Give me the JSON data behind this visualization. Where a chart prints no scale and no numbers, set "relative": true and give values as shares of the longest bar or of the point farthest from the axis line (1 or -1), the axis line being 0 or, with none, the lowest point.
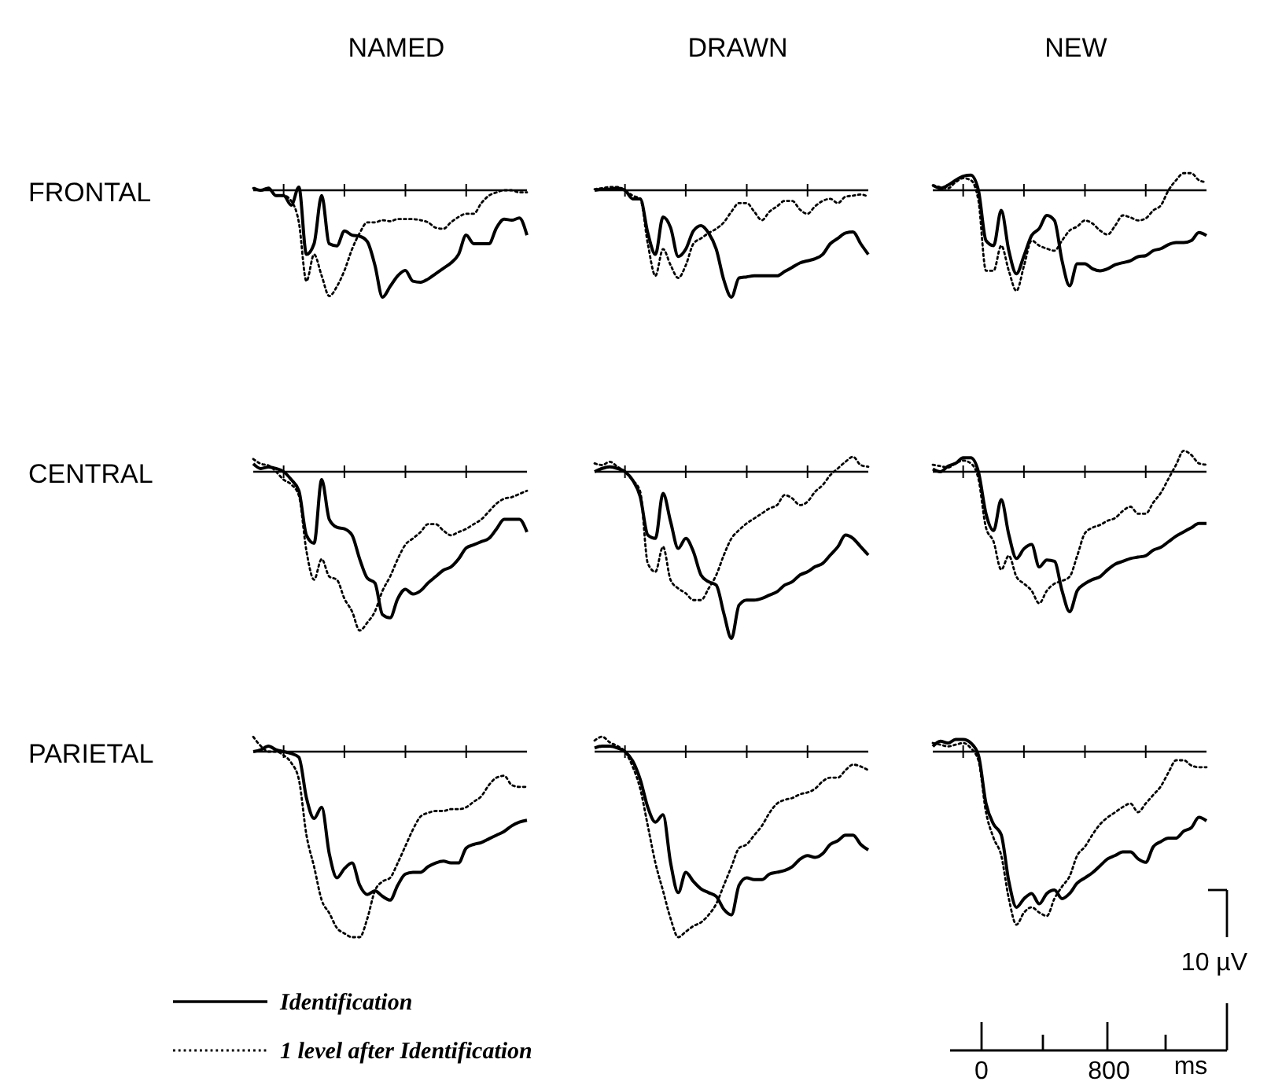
{
  "chart_data": [
    {
      "type": "line",
      "title": "NAMED",
      "ylabel": "FRONTAL",
      "relative": true,
      "categories": [
        null,
        null,
        null,
        null,
        null,
        null,
        null,
        null,
        null,
        null,
        null,
        null,
        null,
        null,
        null,
        null,
        null,
        null,
        null,
        null,
        null,
        null,
        null,
        null,
        null,
        null,
        null,
        null,
        null,
        null,
        null,
        null,
        null,
        null,
        null,
        null,
        null
      ],
      "series": [
        {
          "color": "#000000",
          "line_style": "solid",
          "values": [
            0.02,
            0,
            0.02,
            -0.05,
            -0.05,
            -0.14,
            0.03,
            -0.6,
            -0.5,
            -0.05,
            -0.5,
            -0.52,
            -0.38,
            -0.42,
            -0.43,
            -0.48,
            -0.7,
            -1,
            -0.9,
            -0.8,
            -0.75,
            -0.85,
            -0.86,
            -0.83,
            -0.78,
            -0.73,
            -0.68,
            -0.6,
            -0.42,
            -0.5,
            -0.5,
            -0.5,
            -0.35,
            -0.27,
            -0.28,
            -0.26,
            -0.42
          ]
        },
        {
          "color": "#000000",
          "line_style": "dotted",
          "values": [
            0.02,
            0,
            0.02,
            -0.05,
            -0.05,
            -0.1,
            -0.3,
            -0.85,
            -0.6,
            -0.8,
            -0.99,
            -0.9,
            -0.75,
            -0.55,
            -0.4,
            -0.3,
            -0.3,
            -0.28,
            -0.29,
            -0.27,
            -0.27,
            -0.27,
            -0.28,
            -0.3,
            -0.35,
            -0.36,
            -0.3,
            -0.25,
            -0.22,
            -0.22,
            -0.12,
            -0.05,
            -0.02,
            0,
            0,
            -0.02,
            -0.02
          ]
        }
      ]
    },
    {
      "type": "line",
      "title": "DRAWN",
      "relative": true,
      "categories": [
        null,
        null,
        null,
        null,
        null,
        null,
        null,
        null,
        null,
        null,
        null,
        null,
        null,
        null,
        null,
        null,
        null,
        null,
        null,
        null,
        null,
        null,
        null,
        null,
        null,
        null,
        null,
        null,
        null,
        null,
        null,
        null,
        null,
        null,
        null,
        null,
        null
      ],
      "series": [
        {
          "color": "#000000",
          "line_style": "solid",
          "values": [
            0,
            0.01,
            0.01,
            0.02,
            0,
            -0.08,
            -0.08,
            -0.4,
            -0.6,
            -0.25,
            -0.35,
            -0.62,
            -0.55,
            -0.38,
            -0.33,
            -0.4,
            -0.55,
            -0.84,
            -1,
            -0.82,
            -0.81,
            -0.8,
            -0.8,
            -0.8,
            -0.8,
            -0.76,
            -0.72,
            -0.68,
            -0.66,
            -0.64,
            -0.6,
            -0.5,
            -0.45,
            -0.4,
            -0.39,
            -0.5,
            -0.6
          ]
        },
        {
          "color": "#000000",
          "line_style": "dotted",
          "values": [
            0.01,
            0.02,
            0.03,
            0.03,
            0,
            -0.05,
            -0.08,
            -0.5,
            -0.8,
            -0.55,
            -0.7,
            -0.82,
            -0.7,
            -0.5,
            -0.45,
            -0.4,
            -0.36,
            -0.3,
            -0.2,
            -0.12,
            -0.12,
            -0.2,
            -0.28,
            -0.2,
            -0.15,
            -0.1,
            -0.1,
            -0.18,
            -0.22,
            -0.15,
            -0.1,
            -0.08,
            -0.12,
            -0.06,
            -0.05,
            -0.04,
            -0.06
          ]
        }
      ]
    },
    {
      "type": "line",
      "title": "NEW",
      "relative": true,
      "categories": [
        null,
        null,
        null,
        null,
        null,
        null,
        null,
        null,
        null,
        null,
        null,
        null,
        null,
        null,
        null,
        null,
        null,
        null,
        null,
        null,
        null,
        null,
        null,
        null,
        null,
        null,
        null,
        null,
        null,
        null,
        null,
        null,
        null,
        null,
        null,
        null,
        null
      ],
      "series": [
        {
          "color": "#000000",
          "line_style": "solid",
          "values": [
            0.05,
            0.02,
            0.05,
            0.1,
            0.14,
            0.15,
            0,
            -0.5,
            -0.55,
            -0.2,
            -0.6,
            -0.83,
            -0.65,
            -0.45,
            -0.38,
            -0.25,
            -0.3,
            -0.7,
            -0.95,
            -0.73,
            -0.73,
            -0.78,
            -0.8,
            -0.78,
            -0.74,
            -0.72,
            -0.7,
            -0.66,
            -0.65,
            -0.6,
            -0.58,
            -0.54,
            -0.52,
            -0.52,
            -0.5,
            -0.42,
            -0.45
          ]
        },
        {
          "color": "#000000",
          "line_style": "dotted",
          "values": [
            0.05,
            0.03,
            0.02,
            0.08,
            0.12,
            0.1,
            -0.1,
            -0.8,
            -0.8,
            -0.55,
            -0.8,
            -1,
            -0.75,
            -0.5,
            -0.55,
            -0.58,
            -0.6,
            -0.5,
            -0.4,
            -0.36,
            -0.3,
            -0.33,
            -0.4,
            -0.44,
            -0.35,
            -0.25,
            -0.27,
            -0.3,
            -0.28,
            -0.2,
            -0.15,
            0,
            0.1,
            0.17,
            0.17,
            0.1,
            0.08
          ]
        }
      ]
    },
    {
      "type": "line",
      "ylabel": "CENTRAL",
      "relative": true,
      "categories": [
        null,
        null,
        null,
        null,
        null,
        null,
        null,
        null,
        null,
        null,
        null,
        null,
        null,
        null,
        null,
        null,
        null,
        null,
        null,
        null,
        null,
        null,
        null,
        null,
        null,
        null,
        null,
        null,
        null,
        null,
        null,
        null,
        null,
        null,
        null,
        null,
        null
      ],
      "series": [
        {
          "color": "#000000",
          "line_style": "solid",
          "values": [
            0.05,
            0.02,
            0.03,
            0.02,
            0,
            -0.05,
            -0.12,
            -0.4,
            -0.45,
            -0.05,
            -0.3,
            -0.35,
            -0.36,
            -0.4,
            -0.55,
            -0.67,
            -0.7,
            -0.9,
            -0.92,
            -0.8,
            -0.74,
            -0.77,
            -0.75,
            -0.7,
            -0.66,
            -0.62,
            -0.6,
            -0.55,
            -0.48,
            -0.46,
            -0.44,
            -0.42,
            -0.36,
            -0.3,
            -0.3,
            -0.3,
            -0.38
          ]
        },
        {
          "color": "#000000",
          "line_style": "dotted",
          "values": [
            0.08,
            0.05,
            0.04,
            0,
            -0.05,
            -0.08,
            -0.15,
            -0.5,
            -0.68,
            -0.55,
            -0.66,
            -0.68,
            -0.8,
            -0.88,
            -1,
            -0.95,
            -0.88,
            -0.75,
            -0.66,
            -0.55,
            -0.46,
            -0.42,
            -0.38,
            -0.33,
            -0.33,
            -0.37,
            -0.4,
            -0.38,
            -0.36,
            -0.33,
            -0.3,
            -0.25,
            -0.2,
            -0.17,
            -0.16,
            -0.14,
            -0.12
          ]
        }
      ]
    },
    {
      "type": "line",
      "relative": true,
      "categories": [
        null,
        null,
        null,
        null,
        null,
        null,
        null,
        null,
        null,
        null,
        null,
        null,
        null,
        null,
        null,
        null,
        null,
        null,
        null,
        null,
        null,
        null,
        null,
        null,
        null,
        null,
        null,
        null,
        null,
        null,
        null,
        null,
        null,
        null,
        null,
        null,
        null
      ],
      "series": [
        {
          "color": "#000000",
          "line_style": "solid",
          "values": [
            0,
            0.02,
            0.03,
            0.02,
            0,
            -0.05,
            -0.15,
            -0.38,
            -0.4,
            -0.13,
            -0.3,
            -0.46,
            -0.4,
            -0.48,
            -0.62,
            -0.66,
            -0.68,
            -0.85,
            -1,
            -0.8,
            -0.77,
            -0.77,
            -0.76,
            -0.74,
            -0.72,
            -0.68,
            -0.66,
            -0.62,
            -0.6,
            -0.57,
            -0.55,
            -0.5,
            -0.45,
            -0.38,
            -0.4,
            -0.45,
            -0.5
          ]
        },
        {
          "color": "#000000",
          "line_style": "dotted",
          "values": [
            0.05,
            0.04,
            0.06,
            0.03,
            0,
            -0.05,
            -0.12,
            -0.55,
            -0.6,
            -0.45,
            -0.65,
            -0.7,
            -0.73,
            -0.77,
            -0.77,
            -0.7,
            -0.62,
            -0.5,
            -0.4,
            -0.35,
            -0.31,
            -0.28,
            -0.25,
            -0.22,
            -0.2,
            -0.14,
            -0.16,
            -0.2,
            -0.18,
            -0.12,
            -0.08,
            -0.02,
            0.02,
            0.06,
            0.09,
            0.04,
            0.03
          ]
        }
      ]
    },
    {
      "type": "line",
      "relative": true,
      "categories": [
        null,
        null,
        null,
        null,
        null,
        null,
        null,
        null,
        null,
        null,
        null,
        null,
        null,
        null,
        null,
        null,
        null,
        null,
        null,
        null,
        null,
        null,
        null,
        null,
        null,
        null,
        null,
        null,
        null,
        null,
        null,
        null,
        null,
        null,
        null,
        null,
        null
      ],
      "series": [
        {
          "color": "#000000",
          "line_style": "solid",
          "values": [
            0.02,
            0,
            0.04,
            0.06,
            0.1,
            0.1,
            0,
            -0.3,
            -0.42,
            -0.2,
            -0.45,
            -0.62,
            -0.55,
            -0.52,
            -0.68,
            -0.63,
            -0.64,
            -0.85,
            -1,
            -0.85,
            -0.8,
            -0.77,
            -0.75,
            -0.7,
            -0.66,
            -0.64,
            -0.62,
            -0.61,
            -0.6,
            -0.56,
            -0.54,
            -0.5,
            -0.46,
            -0.43,
            -0.4,
            -0.37,
            -0.37
          ]
        },
        {
          "color": "#000000",
          "line_style": "dotted",
          "values": [
            0.05,
            0.04,
            0.03,
            0.06,
            0.08,
            0.06,
            -0.05,
            -0.4,
            -0.5,
            -0.7,
            -0.6,
            -0.75,
            -0.8,
            -0.85,
            -0.94,
            -0.85,
            -0.8,
            -0.78,
            -0.75,
            -0.6,
            -0.44,
            -0.4,
            -0.38,
            -0.35,
            -0.33,
            -0.28,
            -0.25,
            -0.3,
            -0.3,
            -0.22,
            -0.15,
            -0.05,
            0.05,
            0.15,
            0.12,
            0.06,
            0.05
          ]
        }
      ]
    },
    {
      "type": "line",
      "ylabel": "PARIETAL",
      "relative": true,
      "legend": "bottom left",
      "categories": [
        null,
        null,
        null,
        null,
        null,
        null,
        null,
        null,
        null,
        null,
        null,
        null,
        null,
        null,
        null,
        null,
        null,
        null,
        null,
        null,
        null,
        null,
        null,
        null,
        null,
        null,
        null,
        null,
        null,
        null,
        null,
        null,
        null,
        null,
        null,
        null,
        null
      ],
      "series": [
        {
          "name": "Identification",
          "color": "#000000",
          "line_style": "solid",
          "values": [
            0,
            0.01,
            0.03,
            0.01,
            0,
            -0.01,
            -0.03,
            -0.25,
            -0.36,
            -0.3,
            -0.55,
            -0.68,
            -0.63,
            -0.6,
            -0.72,
            -0.77,
            -0.75,
            -0.78,
            -0.8,
            -0.72,
            -0.66,
            -0.65,
            -0.65,
            -0.62,
            -0.6,
            -0.59,
            -0.6,
            -0.6,
            -0.52,
            -0.5,
            -0.49,
            -0.47,
            -0.45,
            -0.43,
            -0.4,
            -0.38,
            -0.37
          ]
        },
        {
          "name": "1 level after Identification",
          "color": "#000000",
          "line_style": "dotted",
          "values": [
            0.08,
            0.03,
            0,
            0,
            -0.02,
            -0.06,
            -0.15,
            -0.45,
            -0.62,
            -0.8,
            -0.87,
            -0.95,
            -0.98,
            -1,
            -1,
            -0.9,
            -0.75,
            -0.7,
            -0.68,
            -0.6,
            -0.51,
            -0.42,
            -0.35,
            -0.33,
            -0.32,
            -0.32,
            -0.31,
            -0.31,
            -0.3,
            -0.27,
            -0.24,
            -0.18,
            -0.14,
            -0.13,
            -0.18,
            -0.19,
            -0.19
          ]
        }
      ]
    },
    {
      "type": "line",
      "relative": true,
      "categories": [
        null,
        null,
        null,
        null,
        null,
        null,
        null,
        null,
        null,
        null,
        null,
        null,
        null,
        null,
        null,
        null,
        null,
        null,
        null,
        null,
        null,
        null,
        null,
        null,
        null,
        null,
        null,
        null,
        null,
        null,
        null,
        null,
        null,
        null,
        null,
        null,
        null
      ],
      "series": [
        {
          "color": "#000000",
          "line_style": "solid",
          "values": [
            0.02,
            0.03,
            0.03,
            0.02,
            0,
            -0.05,
            -0.15,
            -0.3,
            -0.38,
            -0.34,
            -0.6,
            -0.76,
            -0.65,
            -0.7,
            -0.74,
            -0.76,
            -0.78,
            -0.85,
            -0.88,
            -0.72,
            -0.68,
            -0.69,
            -0.69,
            -0.66,
            -0.65,
            -0.64,
            -0.62,
            -0.58,
            -0.56,
            -0.57,
            -0.55,
            -0.5,
            -0.48,
            -0.45,
            -0.45,
            -0.5,
            -0.53
          ]
        },
        {
          "color": "#000000",
          "line_style": "dotted",
          "values": [
            0.06,
            0.08,
            0.05,
            0.03,
            0,
            -0.08,
            -0.2,
            -0.4,
            -0.6,
            -0.75,
            -0.9,
            -1,
            -0.97,
            -0.94,
            -0.92,
            -0.88,
            -0.82,
            -0.72,
            -0.62,
            -0.52,
            -0.5,
            -0.45,
            -0.4,
            -0.33,
            -0.28,
            -0.26,
            -0.25,
            -0.23,
            -0.22,
            -0.2,
            -0.16,
            -0.14,
            -0.14,
            -0.1,
            -0.07,
            -0.08,
            -0.1
          ]
        }
      ]
    },
    {
      "type": "line",
      "relative": true,
      "categories": [
        null,
        null,
        null,
        null,
        null,
        null,
        null,
        null,
        null,
        null,
        null,
        null,
        null,
        null,
        null,
        null,
        null,
        null,
        null,
        null,
        null,
        null,
        null,
        null,
        null,
        null,
        null,
        null,
        null,
        null,
        null,
        null,
        null,
        null,
        null,
        null,
        null
      ],
      "series": [
        {
          "color": "#000000",
          "line_style": "solid",
          "values": [
            0.03,
            0.06,
            0.05,
            0.07,
            0.07,
            0.05,
            -0.02,
            -0.3,
            -0.42,
            -0.48,
            -0.75,
            -0.9,
            -0.85,
            -0.82,
            -0.88,
            -0.82,
            -0.8,
            -0.85,
            -0.82,
            -0.76,
            -0.73,
            -0.7,
            -0.66,
            -0.62,
            -0.6,
            -0.58,
            -0.58,
            -0.62,
            -0.64,
            -0.55,
            -0.52,
            -0.5,
            -0.5,
            -0.46,
            -0.44,
            -0.38,
            -0.4
          ]
        },
        {
          "color": "#000000",
          "line_style": "dotted",
          "values": [
            0.05,
            0.04,
            0.03,
            0.04,
            0.05,
            0.02,
            -0.05,
            -0.35,
            -0.5,
            -0.6,
            -0.85,
            -1,
            -0.93,
            -0.9,
            -0.93,
            -0.95,
            -0.85,
            -0.78,
            -0.72,
            -0.6,
            -0.55,
            -0.48,
            -0.42,
            -0.38,
            -0.35,
            -0.32,
            -0.3,
            -0.35,
            -0.3,
            -0.25,
            -0.2,
            -0.12,
            -0.05,
            -0.05,
            -0.08,
            -0.09,
            -0.09
          ]
        }
      ]
    },
    {
      "type": "other",
      "annotations": [
        "10 µV",
        "0",
        "800",
        "ms"
      ]
    }
  ]
}
